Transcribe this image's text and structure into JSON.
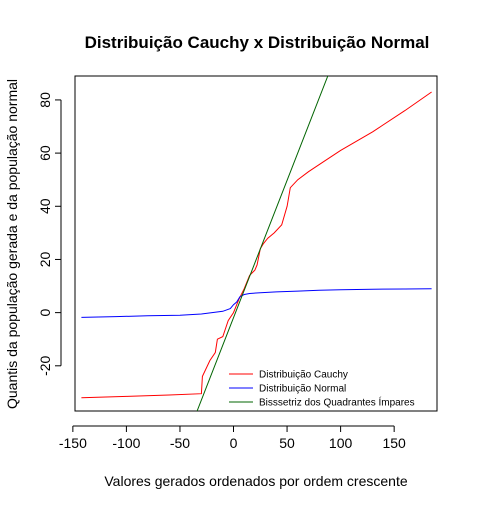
{
  "chart_data": {
    "type": "line",
    "title": "Distribuição Cauchy x Distribuição Normal",
    "xlabel": "Valores gerados ordenados por ordem crescente",
    "ylabel": "Quantis da população gerada e da população normal",
    "xlim": [
      -148,
      190
    ],
    "ylim": [
      -37,
      89
    ],
    "x_ticks": [
      -150,
      -100,
      -50,
      0,
      50,
      100,
      150
    ],
    "y_ticks": [
      -20,
      0,
      20,
      40,
      60,
      80
    ],
    "x_tick_labels": [
      "-150",
      "-100",
      "-50",
      "0",
      "50",
      "100",
      "150"
    ],
    "y_tick_labels": [
      "-20",
      "0",
      "20",
      "40",
      "60",
      "80"
    ],
    "grid": false,
    "legend_position": "bottom-right",
    "series": [
      {
        "name": "Distribuição Cauchy",
        "color": "#ff0000",
        "points": [
          [
            -142,
            -32
          ],
          [
            -100,
            -31.5
          ],
          [
            -60,
            -31
          ],
          [
            -30,
            -30.5
          ],
          [
            -29,
            -24
          ],
          [
            -22,
            -18
          ],
          [
            -17,
            -15
          ],
          [
            -15,
            -10
          ],
          [
            -10,
            -9
          ],
          [
            -5,
            -3
          ],
          [
            0,
            0
          ],
          [
            5,
            5
          ],
          [
            10,
            9
          ],
          [
            15,
            14
          ],
          [
            20,
            16
          ],
          [
            22,
            18
          ],
          [
            25,
            24
          ],
          [
            28,
            26
          ],
          [
            32,
            28
          ],
          [
            38,
            30
          ],
          [
            45,
            33
          ],
          [
            50,
            40
          ],
          [
            53,
            47
          ],
          [
            60,
            50
          ],
          [
            70,
            53
          ],
          [
            85,
            57
          ],
          [
            100,
            61
          ],
          [
            130,
            68
          ],
          [
            160,
            76
          ],
          [
            185,
            83
          ]
        ]
      },
      {
        "name": "Distribuição Normal",
        "color": "#0000ff",
        "points": [
          [
            -142,
            -1.8
          ],
          [
            -110,
            -1.5
          ],
          [
            -80,
            -1.2
          ],
          [
            -50,
            -1
          ],
          [
            -30,
            -0.5
          ],
          [
            -20,
            0
          ],
          [
            -10,
            0.5
          ],
          [
            -3,
            1.5
          ],
          [
            0,
            3
          ],
          [
            3,
            4
          ],
          [
            6,
            6
          ],
          [
            10,
            6.8
          ],
          [
            15,
            7.2
          ],
          [
            25,
            7.5
          ],
          [
            40,
            7.8
          ],
          [
            60,
            8.1
          ],
          [
            80,
            8.4
          ],
          [
            100,
            8.6
          ],
          [
            130,
            8.8
          ],
          [
            160,
            8.9
          ],
          [
            185,
            9
          ]
        ]
      },
      {
        "name": "Bisssetriz dos Quadrantes Ímpares",
        "color": "#006400",
        "points": [
          [
            -34,
            -37
          ],
          [
            88,
            89
          ]
        ]
      }
    ]
  }
}
